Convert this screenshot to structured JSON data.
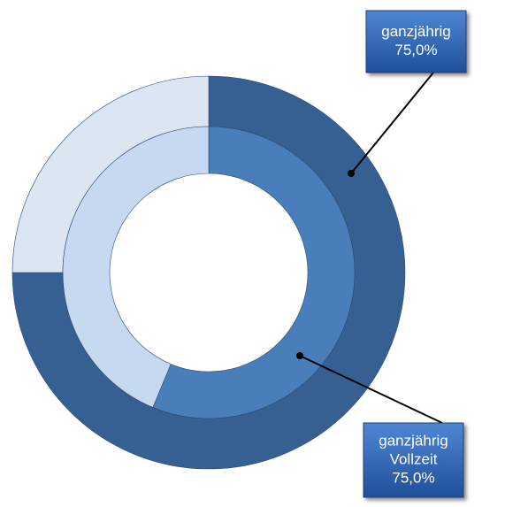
{
  "chart_data": {
    "type": "donut",
    "series": [
      {
        "values": [
          75,
          25
        ],
        "colors": [
          "#376092",
          "#dce6f2"
        ]
      },
      {
        "values": [
          56.25,
          43.75
        ],
        "colors": [
          "#4a7ebb",
          "#c6d9f1"
        ]
      }
    ],
    "annotations": [
      {
        "lines": [
          "ganzjährig",
          "75,0%"
        ]
      },
      {
        "lines": [
          "ganzjährig",
          "Vollzeit",
          "75,0%"
        ]
      }
    ]
  }
}
